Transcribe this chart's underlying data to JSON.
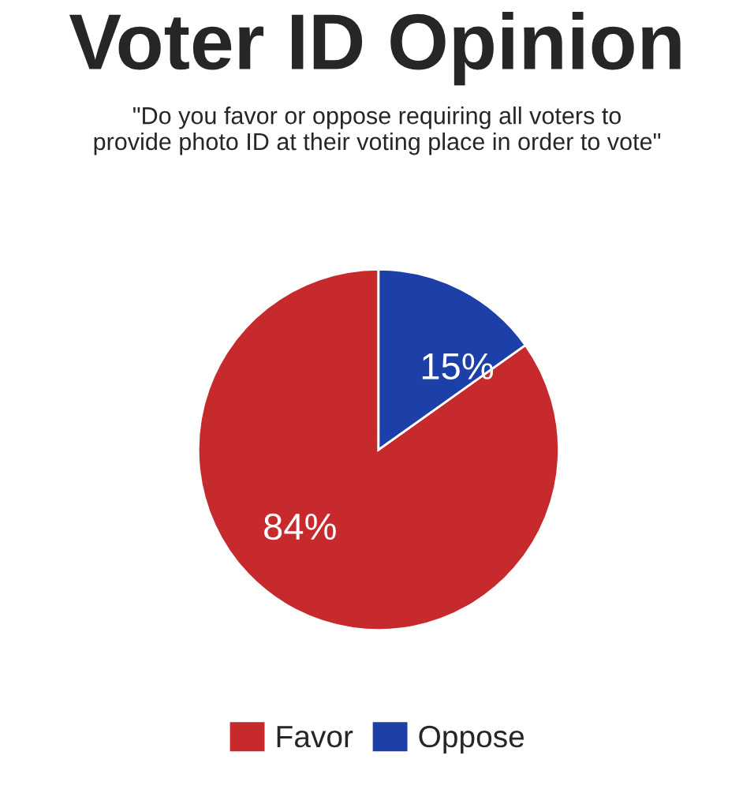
{
  "chart_data": {
    "type": "pie",
    "title": "Voter ID Opinion",
    "subtitle": "\"Do you favor or oppose requiring all voters to\nprovide photo ID at their voting place in order to vote\"",
    "categories": [
      "Favor",
      "Oppose"
    ],
    "values": [
      84,
      15
    ],
    "value_labels": [
      "84%",
      "15%"
    ],
    "colors": [
      "#c62a2c",
      "#1d3fa8"
    ],
    "legend": "bottom"
  }
}
